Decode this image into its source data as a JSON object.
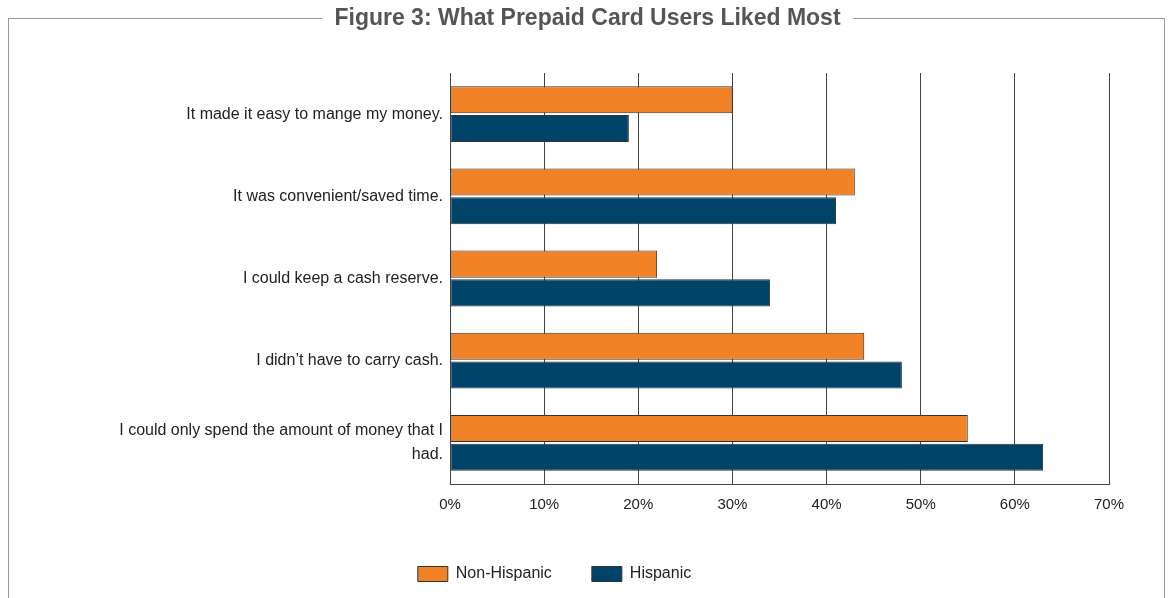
{
  "chart_data": {
    "type": "bar",
    "orientation": "horizontal",
    "title": "Figure 3:  What Prepaid Card Users Liked Most",
    "categories": [
      "It made it easy to mange my money.",
      "It was convenient/saved time.",
      "I could keep a cash reserve.",
      "I didn’t have to carry cash.",
      "I could only spend the amount of money that I had."
    ],
    "series": [
      {
        "name": "Non-Hispanic",
        "color": "#f28228",
        "values": [
          30,
          43,
          22,
          44,
          55
        ]
      },
      {
        "name": "Hispanic",
        "color": "#004368",
        "values": [
          19,
          41,
          34,
          48,
          63
        ]
      }
    ],
    "xlim": [
      0,
      70
    ],
    "xticks": [
      {
        "value": 0,
        "label": "0%"
      },
      {
        "value": 10,
        "label": "10%"
      },
      {
        "value": 20,
        "label": "20%"
      },
      {
        "value": 30,
        "label": "30%"
      },
      {
        "value": 40,
        "label": "40%"
      },
      {
        "value": 50,
        "label": "50%"
      },
      {
        "value": 60,
        "label": "60%"
      },
      {
        "value": 70,
        "label": "70%"
      }
    ],
    "grid": "x",
    "legend": "bottom"
  }
}
